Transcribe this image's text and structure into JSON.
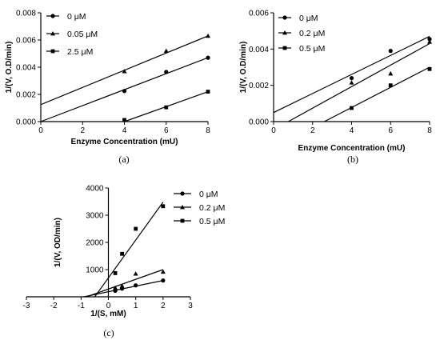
{
  "chart_data": [
    {
      "id": "a",
      "type": "line",
      "caption": "(a)",
      "xlabel": "Enzyme Concentration  (mU)",
      "ylabel": "1/(V, O.D/min)",
      "xlim": [
        0,
        8
      ],
      "ylim": [
        0,
        0.008
      ],
      "xticks": [
        0,
        2,
        4,
        6,
        8
      ],
      "xtick_labels": [
        "0",
        "2",
        "4",
        "6",
        "8"
      ],
      "yticks": [
        0,
        0.002,
        0.004,
        0.006,
        0.008
      ],
      "ytick_labels": [
        "0.000",
        "0.002",
        "0.004",
        "0.006",
        "0.008"
      ],
      "legend_position": "top-left",
      "series": [
        {
          "name": "0 μM",
          "marker": "circle",
          "x": [
            4,
            6,
            8
          ],
          "y": [
            0.00225,
            0.00365,
            0.0047
          ],
          "fit": [
            [
              0,
              0.0
            ],
            [
              8,
              0.0047
            ]
          ]
        },
        {
          "name": "0.05 μM",
          "marker": "triangle",
          "x": [
            4,
            6,
            8
          ],
          "y": [
            0.0037,
            0.0052,
            0.0063
          ],
          "fit": [
            [
              0,
              0.00125
            ],
            [
              8,
              0.0063
            ]
          ]
        },
        {
          "name": "2.5 μM",
          "marker": "square",
          "x": [
            4,
            6,
            8
          ],
          "y": [
            0.00012,
            0.00105,
            0.0022
          ],
          "fit": [
            [
              4,
              0.0
            ],
            [
              8,
              0.0022
            ]
          ]
        }
      ]
    },
    {
      "id": "b",
      "type": "line",
      "caption": "(b)",
      "xlabel": "Enzyme Concentration  (mU)",
      "ylabel": "1/(V, O.D/min)",
      "xlim": [
        0,
        8
      ],
      "ylim": [
        0,
        0.006
      ],
      "xticks": [
        0,
        2,
        4,
        6,
        8
      ],
      "xtick_labels": [
        "0",
        "2",
        "4",
        "6",
        "8"
      ],
      "yticks": [
        0,
        0.002,
        0.004,
        0.006
      ],
      "ytick_labels": [
        "0.000",
        "0.002",
        "0.004",
        "0.006"
      ],
      "legend_position": "top-left",
      "series": [
        {
          "name": "0 μM",
          "marker": "circle",
          "x": [
            4,
            6,
            8
          ],
          "y": [
            0.0024,
            0.0039,
            0.00455
          ],
          "fit": [
            [
              0,
              0.0005
            ],
            [
              8,
              0.0047
            ]
          ]
        },
        {
          "name": "0.2 μM",
          "marker": "triangle",
          "x": [
            4,
            6,
            8
          ],
          "y": [
            0.00215,
            0.00265,
            0.0044
          ],
          "fit": [
            [
              0.75,
              0.0
            ],
            [
              8,
              0.0043
            ]
          ]
        },
        {
          "name": "0.5 μM",
          "marker": "square",
          "x": [
            4,
            6,
            8
          ],
          "y": [
            0.00075,
            0.002,
            0.0029
          ],
          "fit": [
            [
              2.6,
              0.0
            ],
            [
              8,
              0.003
            ]
          ]
        }
      ]
    },
    {
      "id": "c",
      "type": "line",
      "caption": "(c)",
      "xlabel": "1/(S, mM)",
      "ylabel": "1/(V, OD/min)",
      "xlim": [
        -3,
        3
      ],
      "ylim": [
        0,
        4000
      ],
      "xticks": [
        -3,
        -2,
        -1,
        0,
        1,
        2,
        3
      ],
      "xtick_labels": [
        "-3",
        "-2",
        "-1",
        "0",
        "1",
        "2",
        "3"
      ],
      "yticks": [
        1000,
        2000,
        3000,
        4000
      ],
      "ytick_labels": [
        "1000",
        "2000",
        "3000",
        "4000"
      ],
      "legend_position": "top-right",
      "series": [
        {
          "name": "0 μM",
          "marker": "circle",
          "x": [
            0.25,
            0.5,
            1,
            2
          ],
          "y": [
            220,
            300,
            420,
            600
          ],
          "fit": [
            [
              -0.9,
              0
            ],
            [
              2,
              600
            ]
          ]
        },
        {
          "name": "0.2 μM",
          "marker": "triangle",
          "x": [
            0.25,
            0.5,
            1,
            2
          ],
          "y": [
            330,
            400,
            850,
            920
          ],
          "fit": [
            [
              -0.8,
              0
            ],
            [
              2,
              1000
            ]
          ]
        },
        {
          "name": "0.5 μM",
          "marker": "square",
          "x": [
            0.25,
            0.5,
            1,
            2
          ],
          "y": [
            870,
            1580,
            2500,
            3330
          ],
          "fit": [
            [
              -0.5,
              0
            ],
            [
              2,
              3480
            ]
          ]
        }
      ]
    }
  ]
}
